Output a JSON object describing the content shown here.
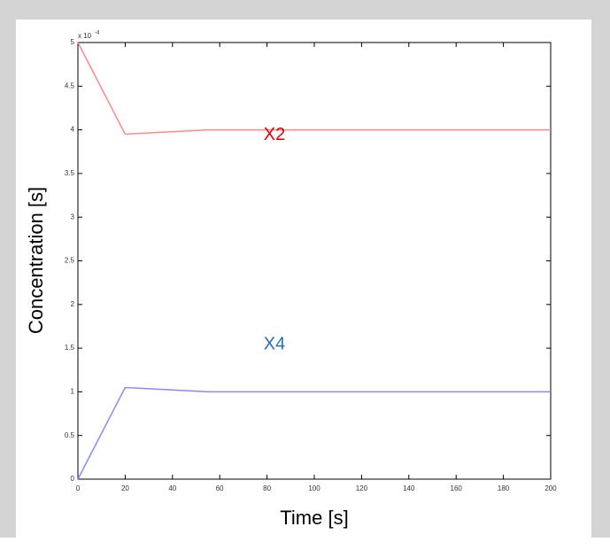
{
  "chart_data": {
    "type": "line",
    "xlabel": "Time [s]",
    "ylabel": "Concentration [s]",
    "exponent_label": {
      "base": "x 10",
      "power": "-4"
    },
    "x": [
      0,
      20,
      55,
      200
    ],
    "series": [
      {
        "name": "X2",
        "color": "#ff8888",
        "label_color": "#e00000",
        "values": [
          5,
          3.95,
          4.0,
          4.0
        ]
      },
      {
        "name": "X4",
        "color": "#8888ff",
        "label_color": "#1f6fc0",
        "values": [
          0,
          1.05,
          1.0,
          1.0
        ]
      }
    ],
    "xlim": [
      0,
      200
    ],
    "xticks": [
      0,
      20,
      40,
      60,
      80,
      100,
      120,
      140,
      160,
      180,
      200
    ],
    "ylim": [
      0,
      5
    ],
    "yticks": [
      0,
      0.5,
      1,
      1.5,
      2,
      2.5,
      3,
      3.5,
      4,
      4.5,
      5
    ]
  }
}
